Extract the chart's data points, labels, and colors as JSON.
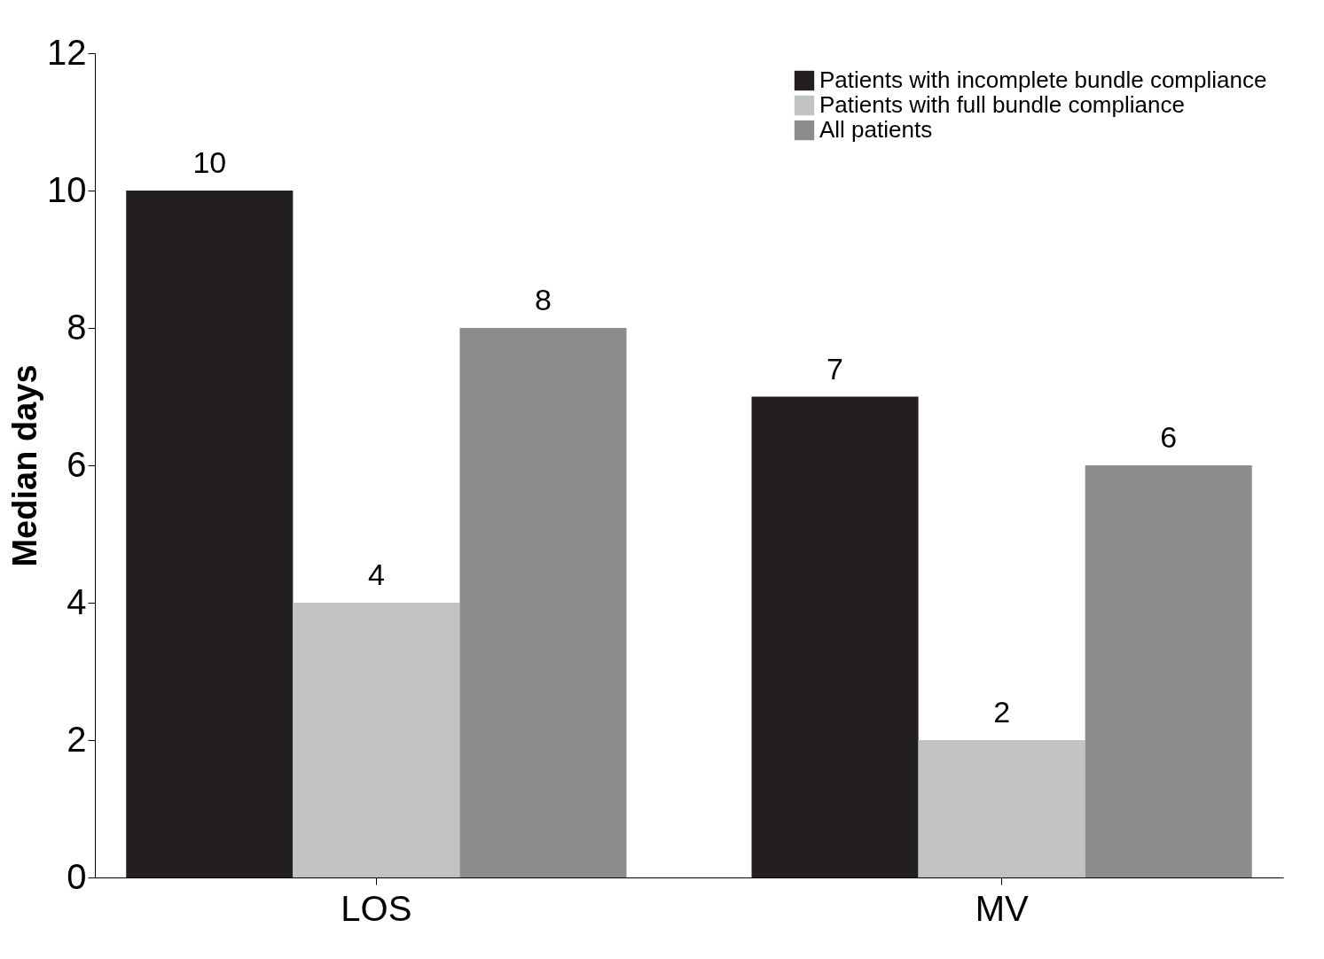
{
  "chart_data": {
    "type": "bar",
    "ylabel": "Median days",
    "categories": [
      "LOS",
      "MV"
    ],
    "series": [
      {
        "name": "Patients with incomplete bundle compliance",
        "color": "#231f20",
        "values": [
          10,
          7
        ]
      },
      {
        "name": "Patients with full bundle compliance",
        "color": "#c0c2c4",
        "values": [
          4,
          2
        ]
      },
      {
        "name": "All patients",
        "color": "#8a8c8e",
        "values": [
          8,
          6
        ]
      }
    ],
    "ylim": [
      0,
      12
    ],
    "yticks": [
      0,
      2,
      4,
      6,
      8,
      10,
      12
    ],
    "grid": false,
    "legend": "top right",
    "data_labels": true
  }
}
